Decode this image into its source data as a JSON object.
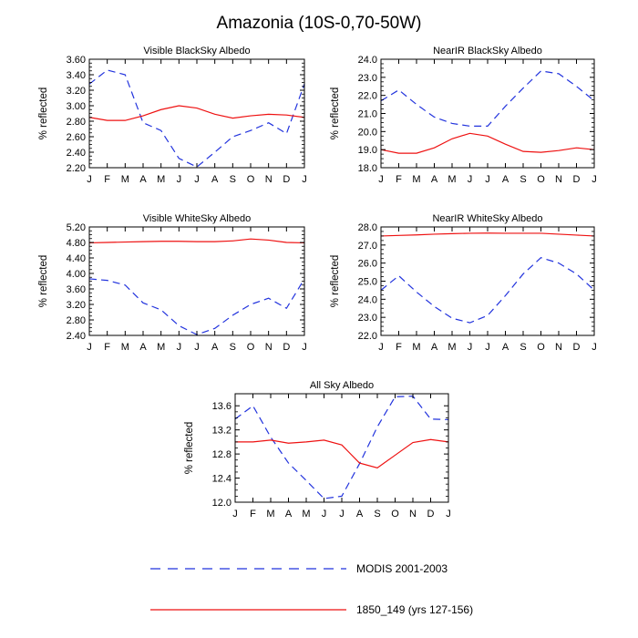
{
  "figure": {
    "title": "Amazonia (10S-0,70-50W)"
  },
  "legend": [
    {
      "name": "MODIS 2001-2003",
      "color": "#2233dd",
      "dash": "dashed"
    },
    {
      "name": "1850_149 (yrs 127-156)",
      "color": "#ee1111",
      "dash": "solid"
    }
  ],
  "chart_data": [
    {
      "type": "line",
      "title": "Visible BlackSky Albedo",
      "ylabel": "% reflected",
      "categories": [
        "J",
        "F",
        "M",
        "A",
        "M",
        "J",
        "J",
        "A",
        "S",
        "O",
        "N",
        "D",
        "J"
      ],
      "ylim": [
        2.2,
        3.6
      ],
      "yticks": [
        2.2,
        2.4,
        2.6,
        2.8,
        3.0,
        3.2,
        3.4,
        3.6
      ],
      "ytick_labels": [
        "2.20",
        "2.40",
        "2.60",
        "2.80",
        "3.00",
        "3.20",
        "3.40",
        "3.60"
      ],
      "series": [
        {
          "name": "MODIS 2001-2003",
          "values": [
            3.28,
            3.46,
            3.4,
            2.78,
            2.68,
            2.32,
            2.21,
            2.4,
            2.6,
            2.68,
            2.78,
            2.64,
            3.28
          ]
        },
        {
          "name": "1850_149 (yrs 127-156)",
          "values": [
            2.85,
            2.81,
            2.81,
            2.87,
            2.95,
            3.0,
            2.97,
            2.89,
            2.84,
            2.87,
            2.89,
            2.88,
            2.85
          ]
        }
      ]
    },
    {
      "type": "line",
      "title": "NearIR BlackSky Albedo",
      "ylabel": "% reflected",
      "categories": [
        "J",
        "F",
        "M",
        "A",
        "M",
        "J",
        "J",
        "A",
        "S",
        "O",
        "N",
        "D",
        "J"
      ],
      "ylim": [
        18.0,
        24.0
      ],
      "yticks": [
        18.0,
        19.0,
        20.0,
        21.0,
        22.0,
        23.0,
        24.0
      ],
      "ytick_labels": [
        "18.0",
        "19.0",
        "20.0",
        "21.0",
        "22.0",
        "23.0",
        "24.0"
      ],
      "series": [
        {
          "name": "MODIS 2001-2003",
          "values": [
            21.7,
            22.3,
            21.5,
            20.8,
            20.45,
            20.3,
            20.3,
            21.4,
            22.4,
            23.35,
            23.2,
            22.5,
            21.7
          ]
        },
        {
          "name": "1850_149 (yrs 127-156)",
          "values": [
            19.0,
            18.8,
            18.8,
            19.1,
            19.6,
            19.9,
            19.75,
            19.3,
            18.9,
            18.85,
            18.95,
            19.1,
            19.0
          ]
        }
      ]
    },
    {
      "type": "line",
      "title": "Visible WhiteSky Albedo",
      "ylabel": "% reflected",
      "categories": [
        "J",
        "F",
        "M",
        "A",
        "M",
        "J",
        "J",
        "A",
        "S",
        "O",
        "N",
        "D",
        "J"
      ],
      "ylim": [
        2.4,
        5.2
      ],
      "yticks": [
        2.4,
        2.8,
        3.2,
        3.6,
        4.0,
        4.4,
        4.8,
        5.2
      ],
      "ytick_labels": [
        "2.40",
        "2.80",
        "3.20",
        "3.60",
        "4.00",
        "4.40",
        "4.80",
        "5.20"
      ],
      "series": [
        {
          "name": "MODIS 2001-2003",
          "values": [
            3.86,
            3.82,
            3.7,
            3.24,
            3.06,
            2.65,
            2.42,
            2.58,
            2.92,
            3.2,
            3.36,
            3.1,
            3.86
          ]
        },
        {
          "name": "1850_149 (yrs 127-156)",
          "values": [
            4.79,
            4.8,
            4.81,
            4.82,
            4.83,
            4.83,
            4.82,
            4.82,
            4.84,
            4.89,
            4.86,
            4.8,
            4.79
          ]
        }
      ]
    },
    {
      "type": "line",
      "title": "NearIR WhiteSky Albedo",
      "ylabel": "% reflected",
      "categories": [
        "J",
        "F",
        "M",
        "A",
        "M",
        "J",
        "J",
        "A",
        "S",
        "O",
        "N",
        "D",
        "J"
      ],
      "ylim": [
        22.0,
        28.0
      ],
      "yticks": [
        22.0,
        23.0,
        24.0,
        25.0,
        26.0,
        27.0,
        28.0
      ],
      "ytick_labels": [
        "22.0",
        "23.0",
        "24.0",
        "25.0",
        "26.0",
        "27.0",
        "28.0"
      ],
      "series": [
        {
          "name": "MODIS 2001-2003",
          "values": [
            24.5,
            25.3,
            24.4,
            23.6,
            22.95,
            22.7,
            23.1,
            24.2,
            25.4,
            26.3,
            26.0,
            25.4,
            24.5
          ]
        },
        {
          "name": "1850_149 (yrs 127-156)",
          "values": [
            27.5,
            27.53,
            27.56,
            27.6,
            27.63,
            27.65,
            27.66,
            27.65,
            27.65,
            27.65,
            27.6,
            27.55,
            27.5
          ]
        }
      ]
    },
    {
      "type": "line",
      "title": "All Sky Albedo",
      "ylabel": "% reflected",
      "categories": [
        "J",
        "F",
        "M",
        "A",
        "M",
        "J",
        "J",
        "A",
        "S",
        "O",
        "N",
        "D",
        "J"
      ],
      "ylim": [
        12.0,
        13.8
      ],
      "yticks": [
        12.0,
        12.4,
        12.8,
        13.2,
        13.6
      ],
      "ytick_labels": [
        "12.0",
        "12.4",
        "12.8",
        "13.2",
        "13.6"
      ],
      "series": [
        {
          "name": "MODIS 2001-2003",
          "values": [
            13.38,
            13.6,
            13.08,
            12.65,
            12.36,
            12.06,
            12.1,
            12.64,
            13.25,
            13.75,
            13.76,
            13.38,
            13.37
          ]
        },
        {
          "name": "1850_149 (yrs 127-156)",
          "values": [
            13.0,
            13.0,
            13.03,
            12.98,
            13.0,
            13.03,
            12.95,
            12.65,
            12.57,
            12.78,
            12.99,
            13.04,
            13.0
          ]
        }
      ]
    }
  ]
}
